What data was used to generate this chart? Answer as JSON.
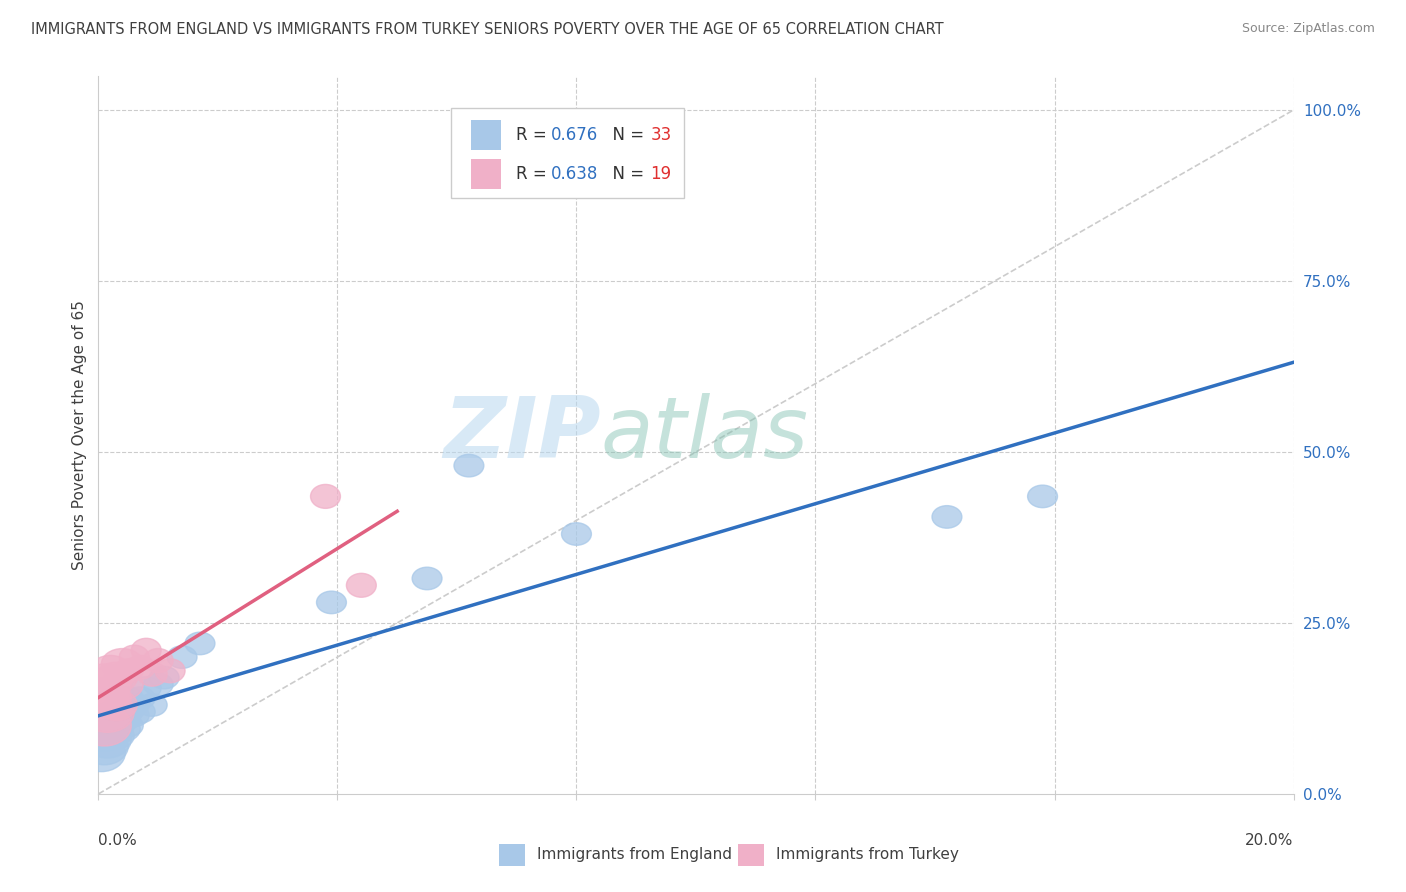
{
  "title": "IMMIGRANTS FROM ENGLAND VS IMMIGRANTS FROM TURKEY SENIORS POVERTY OVER THE AGE OF 65 CORRELATION CHART",
  "source": "Source: ZipAtlas.com",
  "ylabel": "Seniors Poverty Over the Age of 65",
  "england_R": 0.676,
  "england_N": 33,
  "turkey_R": 0.638,
  "turkey_N": 19,
  "england_color": "#a8c8e8",
  "turkey_color": "#f0b0c8",
  "england_line_color": "#3070c0",
  "turkey_line_color": "#e06080",
  "legend_R_color": "#3070c0",
  "legend_N_color": "#e03030",
  "watermark_color": "#c8dff0",
  "background_color": "#ffffff",
  "grid_color": "#cccccc",
  "title_color": "#404040",
  "source_color": "#888888",
  "xlim": [
    0.0,
    0.2
  ],
  "ylim": [
    0.0,
    1.05
  ],
  "eng_x": [
    0.0005,
    0.001,
    0.001,
    0.0015,
    0.002,
    0.002,
    0.002,
    0.0025,
    0.003,
    0.003,
    0.003,
    0.004,
    0.004,
    0.004,
    0.005,
    0.005,
    0.005,
    0.006,
    0.006,
    0.007,
    0.007,
    0.008,
    0.009,
    0.01,
    0.011,
    0.014,
    0.017,
    0.039,
    0.055,
    0.062,
    0.08,
    0.142,
    0.158
  ],
  "eng_y": [
    0.06,
    0.07,
    0.09,
    0.08,
    0.1,
    0.085,
    0.115,
    0.09,
    0.1,
    0.12,
    0.085,
    0.11,
    0.13,
    0.095,
    0.12,
    0.14,
    0.1,
    0.13,
    0.115,
    0.14,
    0.12,
    0.155,
    0.13,
    0.16,
    0.17,
    0.2,
    0.22,
    0.28,
    0.315,
    0.48,
    0.38,
    0.405,
    0.435
  ],
  "tur_x": [
    0.0005,
    0.001,
    0.001,
    0.0015,
    0.002,
    0.002,
    0.003,
    0.003,
    0.004,
    0.004,
    0.005,
    0.006,
    0.007,
    0.008,
    0.009,
    0.01,
    0.012,
    0.038,
    0.044
  ],
  "tur_y": [
    0.14,
    0.1,
    0.16,
    0.12,
    0.14,
    0.18,
    0.13,
    0.17,
    0.16,
    0.19,
    0.18,
    0.2,
    0.185,
    0.21,
    0.175,
    0.195,
    0.18,
    0.435,
    0.305
  ]
}
